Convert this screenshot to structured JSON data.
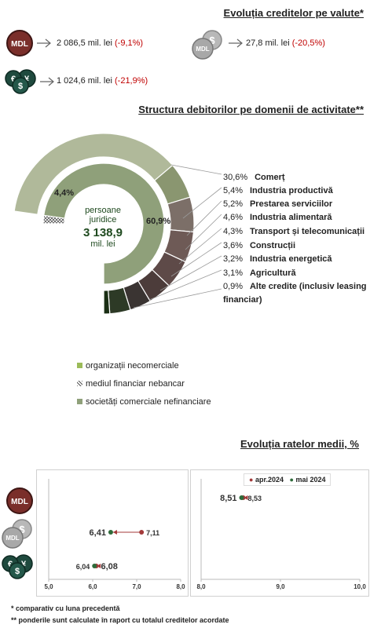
{
  "section1": {
    "title": "Evoluția creditelor pe valute*",
    "mdl": {
      "icon_label": "MDL",
      "value": "2 086,5 mil. lei",
      "change": "(-9,1%)"
    },
    "linked": {
      "icon_label": "MDL",
      "value": "27,8 mil. lei",
      "change": "(-20,5%)"
    },
    "fx": {
      "value": "1 024,6 mil. lei",
      "change": "(-21,9%)"
    }
  },
  "section2": {
    "title": "Structura debitorilor pe domenii de activitate**",
    "center": {
      "line1": "persoane",
      "line2": "juridice",
      "value": "3 138,9",
      "unit": "mil. lei"
    },
    "inner_labels": {
      "nonbank": "4,4%",
      "companies": "60,9%"
    },
    "breakdown": [
      {
        "pct": "30,6%",
        "name": "Comerț"
      },
      {
        "pct": "5,4%",
        "name": "Industria productivă"
      },
      {
        "pct": "5,2%",
        "name": "Prestarea serviciilor"
      },
      {
        "pct": "4,6%",
        "name": "Industria alimentară"
      },
      {
        "pct": "4,3%",
        "name": "Transport și telecomunicații"
      },
      {
        "pct": "3,6%",
        "name": "Construcții"
      },
      {
        "pct": "3,2%",
        "name": "Industria energetică"
      },
      {
        "pct": "3,1%",
        "name": "Agricultură"
      },
      {
        "pct": "0,9%",
        "name": "Alte credite (inclusiv leasing financiar)"
      }
    ],
    "legend": [
      {
        "label": "organizații necomerciale",
        "color": "#9bbb59"
      },
      {
        "label": "mediul financiar nebancar",
        "color": "#808080"
      },
      {
        "label": "societăți comerciale nefinanciare",
        "color": "#8fa07a"
      }
    ]
  },
  "section3": {
    "title": "Evoluția ratelor medii, %",
    "legend": {
      "apr": "apr.2024",
      "mai": "mai 2024"
    },
    "left_axis_ticks": [
      "5,0",
      "6,0",
      "7,0",
      "8,0"
    ],
    "right_axis_ticks": [
      "8,0",
      "9,0",
      "10,0"
    ],
    "rows": [
      {
        "icon": "MDL",
        "mai_label": "8,51",
        "apr_label": "8,53"
      },
      {
        "icon": "MDL",
        "mai_label": "6,41",
        "apr_label": "7,11"
      },
      {
        "icon": "fx",
        "mai_label": "6,04",
        "apr_label": "6,08"
      }
    ]
  },
  "colors": {
    "apr": "#a33a3a",
    "mai": "#2e6b3a",
    "negative": "#c00000",
    "mdl_icon": "#7a2e2a",
    "fx_icon": "#1f4a3e"
  },
  "chart_data": {
    "type": "scatter",
    "title": "Evoluția ratelor medii, %",
    "series": [
      {
        "name": "apr.2024",
        "values": [
          8.53,
          7.11,
          6.08
        ]
      },
      {
        "name": "mai 2024",
        "values": [
          8.51,
          6.41,
          6.04
        ]
      }
    ],
    "left_xlim": [
      5.0,
      8.0
    ],
    "right_xlim": [
      8.0,
      10.0
    ],
    "grid": false
  },
  "footnotes": {
    "f1": "* comparativ cu luna precedentă",
    "f2": "** ponderile sunt calculate în raport cu totalul creditelor acordate"
  }
}
